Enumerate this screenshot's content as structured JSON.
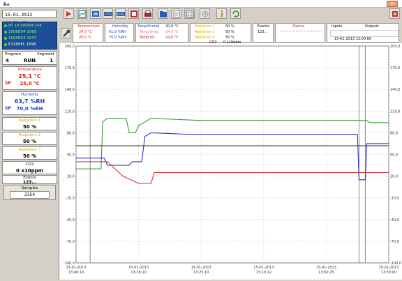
{
  "window": {
    "datetime": "15.01.2013 14:51:46"
  },
  "devices": [
    {
      "label": "RT 10.500D4 154",
      "selected": false
    },
    {
      "label": "1000E54 1565",
      "selected": false
    },
    {
      "label": "1000E53 1547",
      "selected": false
    },
    {
      "label": "E1200FL 1598",
      "selected": true
    }
  ],
  "program": {
    "program_label": "Program",
    "segment_label": "Segment",
    "program_value": "4",
    "state": "RUN",
    "segment_value": "1"
  },
  "temperature": {
    "title": "Temperature",
    "value": "25,1 °C",
    "sp_label": "SP",
    "setpoint": "25,0 °C"
  },
  "humidity": {
    "title": "Humidity",
    "value": "63,7 %RH",
    "sp_label": "SP",
    "setpoint": "70,0 %RH"
  },
  "radiation": [
    {
      "title": "Radiation 1",
      "value": "50 %"
    },
    {
      "title": "Radiation 2",
      "value": "50 %"
    },
    {
      "title": "Radiation 3",
      "value": "50 %"
    }
  ],
  "co2": {
    "title": "CO2",
    "value": "0 x10ppm"
  },
  "events": {
    "title": "Events",
    "value": "123..."
  },
  "samples": {
    "title": "Samples",
    "value": "2354"
  },
  "header": {
    "temp": {
      "l1": "Temperature",
      "l2": "24,7 °C",
      "l3": "20,0 °C"
    },
    "hum": {
      "l1": "Humidity",
      "l2": "61,9 %RH",
      "l3": "70,0 %RH"
    },
    "extra": {
      "l1": "Temp/Humid",
      "l2": "Temp Evap",
      "l3": "Temp Int",
      "v1": "20,0 °C",
      "v2": "24,0 °C",
      "v3": "24,6 °C"
    },
    "rad": {
      "l1": "Radiation 1",
      "l2": "Radiation 2",
      "l3": "Radiation 3",
      "v1": "50 %",
      "v2": "50 %",
      "v3": "50 %"
    },
    "co2_label": "CO2",
    "co2_value": "0 x10ppm",
    "events_label": "Events",
    "events_value": "123...",
    "alarms_label": "Alarms",
    "inputs_label": "Inputs",
    "outputs_label": "Outputs",
    "timestamp": "15-01-2013 13:00:00"
  },
  "chart_data": {
    "type": "line",
    "y_ticks": [
      "200,0",
      "170,0",
      "140,0",
      "110,0",
      "80,0",
      "50,0",
      "20,0",
      "-10,0",
      "-40,0",
      "-70,0",
      "-100,0"
    ],
    "ylim": [
      -100,
      200
    ],
    "x_ticks": [
      {
        "date": "15-01-2013",
        "time": "13:40:10"
      },
      {
        "date": "15-01-2013",
        "time": "13:26:10"
      },
      {
        "date": "15-01-2013",
        "time": "13:25:10"
      },
      {
        "date": "15-01-2013",
        "time": "13:10:12"
      },
      {
        "date": "15-01-2013",
        "time": "13:50:25"
      },
      {
        "date": "15-01-2013",
        "time": "13:53:00"
      }
    ],
    "series": [
      {
        "color": "#2f9e2f",
        "points": [
          [
            0,
            30
          ],
          [
            0.08,
            30
          ],
          [
            0.085,
            95
          ],
          [
            0.1,
            100
          ],
          [
            0.16,
            100
          ],
          [
            0.17,
            80
          ],
          [
            0.19,
            80
          ],
          [
            0.2,
            90
          ],
          [
            0.24,
            100
          ],
          [
            0.4,
            97
          ],
          [
            0.93,
            97
          ],
          [
            0.94,
            94
          ],
          [
            1,
            94
          ]
        ]
      },
      {
        "color": "#2b32c8",
        "points": [
          [
            0,
            45
          ],
          [
            0.09,
            45
          ],
          [
            0.1,
            35
          ],
          [
            0.17,
            35
          ],
          [
            0.18,
            40
          ],
          [
            0.21,
            40
          ],
          [
            0.22,
            75
          ],
          [
            0.24,
            80
          ],
          [
            0.35,
            78
          ],
          [
            0.9,
            78
          ],
          [
            0.905,
            15
          ],
          [
            0.925,
            15
          ],
          [
            0.93,
            65
          ],
          [
            1,
            65
          ]
        ]
      },
      {
        "color": "#d63030",
        "points": [
          [
            0,
            40
          ],
          [
            0.1,
            40
          ],
          [
            0.15,
            20
          ],
          [
            0.2,
            10
          ],
          [
            0.24,
            10
          ],
          [
            0.25,
            25
          ],
          [
            1,
            25
          ]
        ]
      },
      {
        "color": "#3a3a3a",
        "points": [
          [
            0,
            62
          ],
          [
            1,
            62
          ]
        ]
      }
    ]
  },
  "colors": {
    "temp": "#d21d1d",
    "hum": "#1c3fc9",
    "panel_border": "#8a8a8a",
    "devlist_bg": "#1d4f99"
  },
  "icons": [
    "app-icon",
    "start-icon",
    "chart-icon",
    "data-icon",
    "cfg-icon",
    "log-icon",
    "alarm-icon",
    "print-icon",
    "folder-icon",
    "export-icon",
    "grid-icon",
    "settings-icon",
    "info-icon",
    "refresh-icon",
    "exit-icon"
  ]
}
